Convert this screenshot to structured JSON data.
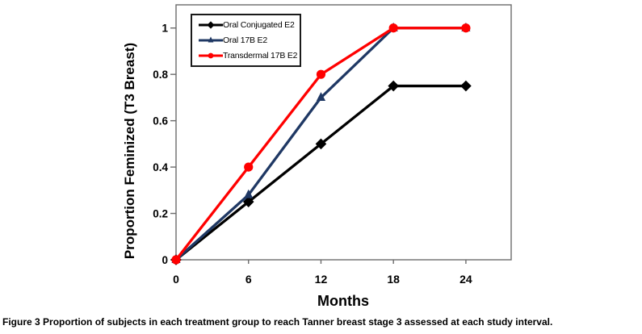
{
  "figure": {
    "caption_label": "Figure 3",
    "caption_text": "Proportion of subjects in each treatment group to reach Tanner breast stage 3 assessed at each study interval."
  },
  "chart_data": {
    "type": "line",
    "title": "",
    "xlabel": "Months",
    "ylabel": "Proportion Feminized (T3 Breast)",
    "x": [
      0,
      6,
      12,
      18,
      24
    ],
    "x_ticks": [
      "0",
      "6",
      "12",
      "18",
      "24"
    ],
    "y_ticks": [
      "0",
      "0.2",
      "0.4",
      "0.6",
      "0.8",
      "1"
    ],
    "y_tick_values": [
      0,
      0.2,
      0.4,
      0.6,
      0.8,
      1
    ],
    "xlim": [
      0,
      27.75
    ],
    "ylim": [
      0,
      1.1
    ],
    "grid": false,
    "legend_position": "top-left-inside",
    "frame_color": "#6b6b6b",
    "series": [
      {
        "name": "Oral Conjugated E2",
        "marker": "diamond",
        "color": "#000000",
        "values": [
          0,
          0.25,
          0.5,
          0.75,
          0.75
        ]
      },
      {
        "name": "Oral 17B E2",
        "marker": "triangle",
        "color": "#1F3864",
        "values": [
          0,
          0.28,
          0.7,
          1,
          1
        ]
      },
      {
        "name": "Transdermal 17B E2",
        "marker": "circle",
        "color": "#FF0000",
        "values": [
          0,
          0.4,
          0.8,
          1,
          1
        ]
      }
    ]
  }
}
